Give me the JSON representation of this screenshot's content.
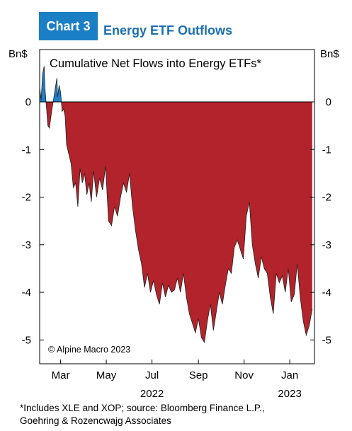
{
  "header": {
    "chart_number": "Chart 3",
    "title": "Energy ETF Outflows"
  },
  "units": {
    "left": "Bn$",
    "right": "Bn$"
  },
  "footnote": {
    "line1": "*Includes XLE and XOP; source: Bloomberg Finance L.P.,",
    "line2": "Goehring & Rozencwajg Associates"
  },
  "colors": {
    "positive": "#1f7fc7",
    "negative": "#b3232b",
    "accent": "#1a7fc4"
  },
  "chart_data": {
    "type": "area",
    "title": "Cumulative Net Flows into Energy ETFs*",
    "annotation": "© Alpine Macro 2023",
    "ylabel": "Bn$",
    "ylim": [
      -5.5,
      1.1
    ],
    "y_ticks": [
      0,
      -1,
      -2,
      -3,
      -4,
      -5
    ],
    "y_tick_labels": [
      "0",
      "-1",
      "-2",
      "-3",
      "-4",
      "-5"
    ],
    "x_range": [
      "2022-02-01",
      "2023-02-03"
    ],
    "x_ticks": [
      "2022-03-01",
      "2022-05-01",
      "2022-07-01",
      "2022-09-01",
      "2022-11-01",
      "2023-01-01"
    ],
    "x_tick_labels": [
      "Mar",
      "May",
      "Jul",
      "Sep",
      "Nov",
      "Jan"
    ],
    "year_labels": [
      {
        "date": "2022-07-01",
        "label": "2022"
      },
      {
        "date": "2023-01-01",
        "label": "2023"
      }
    ],
    "grid": false,
    "x": [
      "2022-02-01",
      "2022-02-03",
      "2022-02-05",
      "2022-02-07",
      "2022-02-08",
      "2022-02-10",
      "2022-02-12",
      "2022-02-14",
      "2022-02-17",
      "2022-02-20",
      "2022-02-22",
      "2022-02-24",
      "2022-02-25",
      "2022-02-27",
      "2022-03-01",
      "2022-03-03",
      "2022-03-05",
      "2022-03-07",
      "2022-03-09",
      "2022-03-12",
      "2022-03-15",
      "2022-03-18",
      "2022-03-21",
      "2022-03-24",
      "2022-03-27",
      "2022-03-30",
      "2022-04-02",
      "2022-04-05",
      "2022-04-08",
      "2022-04-11",
      "2022-04-14",
      "2022-04-18",
      "2022-04-22",
      "2022-04-26",
      "2022-04-30",
      "2022-05-04",
      "2022-05-08",
      "2022-05-12",
      "2022-05-16",
      "2022-05-20",
      "2022-05-24",
      "2022-05-28",
      "2022-06-01",
      "2022-06-05",
      "2022-06-09",
      "2022-06-13",
      "2022-06-17",
      "2022-06-21",
      "2022-06-25",
      "2022-06-29",
      "2022-07-03",
      "2022-07-07",
      "2022-07-11",
      "2022-07-15",
      "2022-07-19",
      "2022-07-23",
      "2022-07-27",
      "2022-07-31",
      "2022-08-04",
      "2022-08-08",
      "2022-08-12",
      "2022-08-16",
      "2022-08-20",
      "2022-08-24",
      "2022-08-28",
      "2022-09-01",
      "2022-09-05",
      "2022-09-09",
      "2022-09-13",
      "2022-09-17",
      "2022-09-21",
      "2022-09-25",
      "2022-09-29",
      "2022-10-03",
      "2022-10-07",
      "2022-10-11",
      "2022-10-15",
      "2022-10-19",
      "2022-10-23",
      "2022-10-27",
      "2022-10-31",
      "2022-11-04",
      "2022-11-08",
      "2022-11-12",
      "2022-11-16",
      "2022-11-20",
      "2022-11-24",
      "2022-11-28",
      "2022-12-02",
      "2022-12-06",
      "2022-12-10",
      "2022-12-14",
      "2022-12-18",
      "2022-12-22",
      "2022-12-26",
      "2022-12-30",
      "2023-01-03",
      "2023-01-07",
      "2023-01-11",
      "2023-01-15",
      "2023-01-19",
      "2023-01-23",
      "2023-01-27",
      "2023-01-31"
    ],
    "series": [
      {
        "values": [
          0.3,
          0.05,
          0.6,
          0.75,
          0.3,
          -0.1,
          -0.5,
          -0.55,
          -0.2,
          0.1,
          0.3,
          0.5,
          0.1,
          0.35,
          0.2,
          -0.2,
          -0.15,
          -0.3,
          -0.9,
          -1.1,
          -1.3,
          -1.8,
          -1.7,
          -2.2,
          -1.4,
          -1.7,
          -1.5,
          -1.95,
          -1.7,
          -2.1,
          -1.45,
          -2.0,
          -1.6,
          -1.85,
          -1.35,
          -2.5,
          -2.6,
          -2.2,
          -2.4,
          -2.0,
          -1.7,
          -1.9,
          -1.5,
          -2.2,
          -2.7,
          -3.1,
          -3.4,
          -3.9,
          -3.6,
          -4.0,
          -3.75,
          -4.05,
          -4.25,
          -3.8,
          -4.1,
          -3.85,
          -4.0,
          -3.95,
          -3.7,
          -4.0,
          -3.6,
          -4.1,
          -4.45,
          -4.65,
          -4.85,
          -4.55,
          -4.95,
          -5.05,
          -4.6,
          -4.25,
          -4.8,
          -4.4,
          -4.0,
          -4.25,
          -3.85,
          -3.5,
          -3.6,
          -3.05,
          -2.9,
          -3.1,
          -3.3,
          -2.4,
          -2.1,
          -3.0,
          -3.4,
          -3.7,
          -3.25,
          -3.5,
          -3.6,
          -4.1,
          -4.45,
          -3.6,
          -3.8,
          -3.65,
          -4.0,
          -3.5,
          -4.2,
          -4.05,
          -3.4,
          -4.1,
          -4.6,
          -4.9,
          -4.7,
          -4.35
        ]
      }
    ]
  }
}
